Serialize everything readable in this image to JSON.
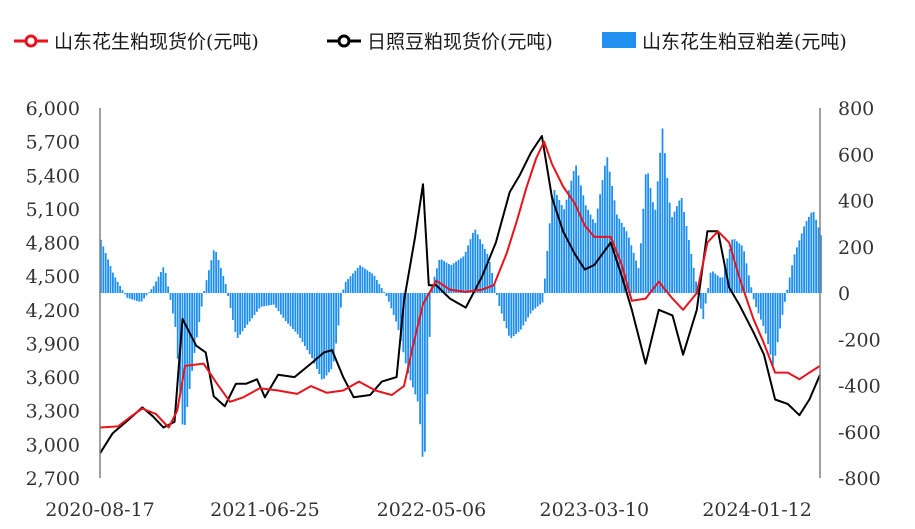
{
  "chart_data": {
    "type": "line",
    "legend": [
      {
        "label": "山东花生粕现货价(元吨)",
        "color": "#e8141b",
        "kind": "line-marker"
      },
      {
        "label": "日照豆粕现货价(元吨)",
        "color": "#000000",
        "kind": "line-marker"
      },
      {
        "label": "山东花生粕豆粕差(元吨)",
        "color": "#1f8ff0",
        "kind": "bar"
      }
    ],
    "x_axis": {
      "type": "date",
      "range": [
        "2020-08-17",
        "2024-05-10"
      ],
      "tick_labels": [
        "2020-08-17",
        "2021-06-25",
        "2022-05-06",
        "2023-03-10",
        "2024-01-12"
      ]
    },
    "y_left": {
      "range": [
        2700,
        6000
      ],
      "ticks": [
        2700,
        3000,
        3300,
        3600,
        3900,
        4200,
        4500,
        4800,
        5100,
        5400,
        5700,
        6000
      ],
      "tick_labels": [
        "2,700",
        "3,000",
        "3,300",
        "3,600",
        "3,900",
        "4,200",
        "4,500",
        "4,800",
        "5,100",
        "5,400",
        "5,700",
        "6,000"
      ]
    },
    "y_right": {
      "range": [
        -800,
        800
      ],
      "ticks": [
        -800,
        -600,
        -400,
        -200,
        0,
        200,
        400,
        600,
        800
      ],
      "tick_labels": [
        "-800",
        "-600",
        "-400",
        "-200",
        "0",
        "200",
        "400",
        "600",
        "800"
      ]
    },
    "series": [
      {
        "name": "山东花生粕现货价(元吨)",
        "axis": "left",
        "color": "#e8141b",
        "points": [
          [
            "2020-08-17",
            3150
          ],
          [
            "2020-09-20",
            3160
          ],
          [
            "2020-10-15",
            3250
          ],
          [
            "2020-11-05",
            3320
          ],
          [
            "2020-12-01",
            3270
          ],
          [
            "2020-12-25",
            3150
          ],
          [
            "2021-01-10",
            3300
          ],
          [
            "2021-01-25",
            3700
          ],
          [
            "2021-03-01",
            3720
          ],
          [
            "2021-03-25",
            3550
          ],
          [
            "2021-04-20",
            3380
          ],
          [
            "2021-05-15",
            3420
          ],
          [
            "2021-06-15",
            3500
          ],
          [
            "2021-07-20",
            3480
          ],
          [
            "2021-08-25",
            3450
          ],
          [
            "2021-09-20",
            3520
          ],
          [
            "2021-10-20",
            3460
          ],
          [
            "2021-11-20",
            3480
          ],
          [
            "2021-12-20",
            3560
          ],
          [
            "2022-01-20",
            3480
          ],
          [
            "2022-02-20",
            3440
          ],
          [
            "2022-03-15",
            3520
          ],
          [
            "2022-04-01",
            3880
          ],
          [
            "2022-04-20",
            4250
          ],
          [
            "2022-05-15",
            4460
          ],
          [
            "2022-06-10",
            4380
          ],
          [
            "2022-07-10",
            4360
          ],
          [
            "2022-08-10",
            4380
          ],
          [
            "2022-09-01",
            4420
          ],
          [
            "2022-09-25",
            4700
          ],
          [
            "2022-10-15",
            5000
          ],
          [
            "2022-11-01",
            5280
          ],
          [
            "2022-11-20",
            5550
          ],
          [
            "2022-12-05",
            5700
          ],
          [
            "2022-12-20",
            5500
          ],
          [
            "2023-01-10",
            5300
          ],
          [
            "2023-02-01",
            5150
          ],
          [
            "2023-02-20",
            4950
          ],
          [
            "2023-03-10",
            4850
          ],
          [
            "2023-04-10",
            4850
          ],
          [
            "2023-05-01",
            4600
          ],
          [
            "2023-05-20",
            4280
          ],
          [
            "2023-06-15",
            4300
          ],
          [
            "2023-07-10",
            4450
          ],
          [
            "2023-08-05",
            4300
          ],
          [
            "2023-08-25",
            4200
          ],
          [
            "2023-09-20",
            4350
          ],
          [
            "2023-10-10",
            4800
          ],
          [
            "2023-10-30",
            4900
          ],
          [
            "2023-11-20",
            4800
          ],
          [
            "2023-12-10",
            4480
          ],
          [
            "2024-01-05",
            4120
          ],
          [
            "2024-01-25",
            3900
          ],
          [
            "2024-02-15",
            3640
          ],
          [
            "2024-03-10",
            3640
          ],
          [
            "2024-04-01",
            3580
          ],
          [
            "2024-04-20",
            3640
          ],
          [
            "2024-05-10",
            3700
          ]
        ]
      },
      {
        "name": "日照豆粕现货价(元吨)",
        "axis": "left",
        "color": "#000000",
        "points": [
          [
            "2020-08-17",
            2920
          ],
          [
            "2020-09-10",
            3100
          ],
          [
            "2020-10-10",
            3220
          ],
          [
            "2020-11-05",
            3330
          ],
          [
            "2020-11-25",
            3250
          ],
          [
            "2020-12-15",
            3150
          ],
          [
            "2021-01-05",
            3200
          ],
          [
            "2021-01-20",
            4120
          ],
          [
            "2021-02-15",
            3880
          ],
          [
            "2021-03-05",
            3820
          ],
          [
            "2021-03-20",
            3430
          ],
          [
            "2021-04-10",
            3340
          ],
          [
            "2021-05-01",
            3540
          ],
          [
            "2021-05-20",
            3540
          ],
          [
            "2021-06-10",
            3580
          ],
          [
            "2021-06-25",
            3420
          ],
          [
            "2021-07-20",
            3620
          ],
          [
            "2021-08-20",
            3600
          ],
          [
            "2021-09-20",
            3720
          ],
          [
            "2021-10-15",
            3820
          ],
          [
            "2021-10-30",
            3840
          ],
          [
            "2021-11-20",
            3600
          ],
          [
            "2021-12-10",
            3420
          ],
          [
            "2022-01-10",
            3440
          ],
          [
            "2022-02-01",
            3560
          ],
          [
            "2022-03-01",
            3600
          ],
          [
            "2022-03-15",
            4280
          ],
          [
            "2022-04-05",
            4850
          ],
          [
            "2022-04-20",
            5320
          ],
          [
            "2022-05-01",
            4420
          ],
          [
            "2022-05-15",
            4420
          ],
          [
            "2022-06-10",
            4300
          ],
          [
            "2022-07-10",
            4220
          ],
          [
            "2022-08-10",
            4500
          ],
          [
            "2022-09-05",
            4800
          ],
          [
            "2022-10-01",
            5250
          ],
          [
            "2022-10-20",
            5400
          ],
          [
            "2022-11-10",
            5600
          ],
          [
            "2022-12-01",
            5750
          ],
          [
            "2022-12-20",
            5200
          ],
          [
            "2023-01-10",
            4900
          ],
          [
            "2023-02-01",
            4700
          ],
          [
            "2023-02-20",
            4560
          ],
          [
            "2023-03-10",
            4600
          ],
          [
            "2023-04-10",
            4800
          ],
          [
            "2023-05-01",
            4500
          ],
          [
            "2023-05-20",
            4200
          ],
          [
            "2023-06-15",
            3720
          ],
          [
            "2023-07-10",
            4200
          ],
          [
            "2023-08-05",
            4150
          ],
          [
            "2023-08-25",
            3800
          ],
          [
            "2023-09-20",
            4200
          ],
          [
            "2023-10-10",
            4900
          ],
          [
            "2023-10-30",
            4900
          ],
          [
            "2023-11-20",
            4400
          ],
          [
            "2023-12-10",
            4240
          ],
          [
            "2024-01-05",
            4000
          ],
          [
            "2024-01-25",
            3800
          ],
          [
            "2024-02-15",
            3400
          ],
          [
            "2024-03-10",
            3360
          ],
          [
            "2024-04-01",
            3260
          ],
          [
            "2024-04-20",
            3400
          ],
          [
            "2024-05-10",
            3620
          ]
        ]
      },
      {
        "name": "山东花生粕豆粕差(元吨)",
        "axis": "right",
        "color": "#1f8ff0",
        "points": [
          [
            "2020-08-17",
            230
          ],
          [
            "2020-09-10",
            80
          ],
          [
            "2020-10-05",
            -20
          ],
          [
            "2020-11-01",
            -40
          ],
          [
            "2020-11-25",
            30
          ],
          [
            "2020-12-15",
            120
          ],
          [
            "2021-01-05",
            -150
          ],
          [
            "2021-01-20",
            -620
          ],
          [
            "2021-02-10",
            -260
          ],
          [
            "2021-03-01",
            20
          ],
          [
            "2021-03-20",
            200
          ],
          [
            "2021-04-10",
            40
          ],
          [
            "2021-05-01",
            -200
          ],
          [
            "2021-05-20",
            -140
          ],
          [
            "2021-06-15",
            -60
          ],
          [
            "2021-07-10",
            -50
          ],
          [
            "2021-08-01",
            -120
          ],
          [
            "2021-08-25",
            -180
          ],
          [
            "2021-09-20",
            -280
          ],
          [
            "2021-10-10",
            -380
          ],
          [
            "2021-10-30",
            -320
          ],
          [
            "2021-11-20",
            40
          ],
          [
            "2021-12-20",
            120
          ],
          [
            "2022-01-15",
            80
          ],
          [
            "2022-02-10",
            -20
          ],
          [
            "2022-03-01",
            -140
          ],
          [
            "2022-03-20",
            -340
          ],
          [
            "2022-04-10",
            -480
          ],
          [
            "2022-04-20",
            -790
          ],
          [
            "2022-05-05",
            30
          ],
          [
            "2022-05-20",
            150
          ],
          [
            "2022-06-10",
            120
          ],
          [
            "2022-07-05",
            160
          ],
          [
            "2022-07-25",
            280
          ],
          [
            "2022-08-20",
            160
          ],
          [
            "2022-09-10",
            -60
          ],
          [
            "2022-09-30",
            -200
          ],
          [
            "2022-10-20",
            -160
          ],
          [
            "2022-11-10",
            -80
          ],
          [
            "2022-12-01",
            -40
          ],
          [
            "2022-12-20",
            460
          ],
          [
            "2023-01-10",
            360
          ],
          [
            "2023-02-01",
            560
          ],
          [
            "2023-02-20",
            380
          ],
          [
            "2023-03-10",
            300
          ],
          [
            "2023-04-01",
            600
          ],
          [
            "2023-04-20",
            340
          ],
          [
            "2023-05-10",
            260
          ],
          [
            "2023-06-01",
            100
          ],
          [
            "2023-06-15",
            560
          ],
          [
            "2023-07-01",
            340
          ],
          [
            "2023-07-15",
            720
          ],
          [
            "2023-08-01",
            320
          ],
          [
            "2023-08-20",
            420
          ],
          [
            "2023-09-10",
            140
          ],
          [
            "2023-09-30",
            -120
          ],
          [
            "2023-10-15",
            100
          ],
          [
            "2023-11-05",
            60
          ],
          [
            "2023-11-25",
            240
          ],
          [
            "2023-12-15",
            200
          ],
          [
            "2024-01-05",
            -40
          ],
          [
            "2024-01-25",
            -160
          ],
          [
            "2024-02-10",
            -320
          ],
          [
            "2024-03-01",
            -60
          ],
          [
            "2024-03-20",
            160
          ],
          [
            "2024-04-10",
            300
          ],
          [
            "2024-04-25",
            360
          ],
          [
            "2024-05-10",
            250
          ]
        ]
      }
    ]
  }
}
